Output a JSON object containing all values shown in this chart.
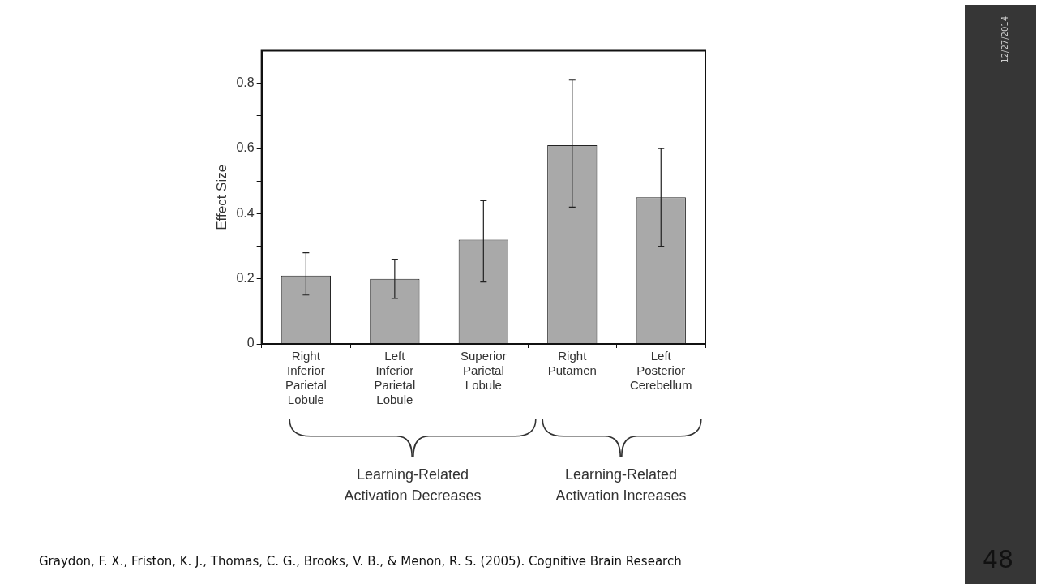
{
  "chart_data": {
    "type": "bar",
    "ylabel": "Effect Size",
    "categories": [
      "Right Inferior Parietal Lobule",
      "Left Inferior Parietal Lobule",
      "Superior Parietal Lobule",
      "Right Putamen",
      "Left Posterior Cerebellum"
    ],
    "values": [
      0.21,
      0.2,
      0.32,
      0.61,
      0.45
    ],
    "errors": [
      [
        0.15,
        0.28
      ],
      [
        0.14,
        0.26
      ],
      [
        0.19,
        0.44
      ],
      [
        0.42,
        0.81
      ],
      [
        0.3,
        0.6
      ]
    ],
    "color": "#a9a9a9",
    "ylim": [
      0,
      0.9
    ],
    "yticks": [
      0,
      {
        "value": 0.1,
        "label": null
      },
      0.2,
      {
        "value": 0.3,
        "label": null
      },
      0.4,
      {
        "value": 0.5,
        "label": null
      },
      0.6,
      {
        "value": 0.7,
        "label": null
      },
      0.8
    ],
    "grid": false,
    "legend": false,
    "annotations": [
      "Learning-Related Activation Decreases",
      "Learning-Related Activation Increases",
      "Graydon, F. X., Friston, K. J., Thomas, C. G., Brooks, V. B., & Menon, R. S. (2005). Cognitive Brain Research",
      "12/27/2014",
      "48"
    ]
  }
}
